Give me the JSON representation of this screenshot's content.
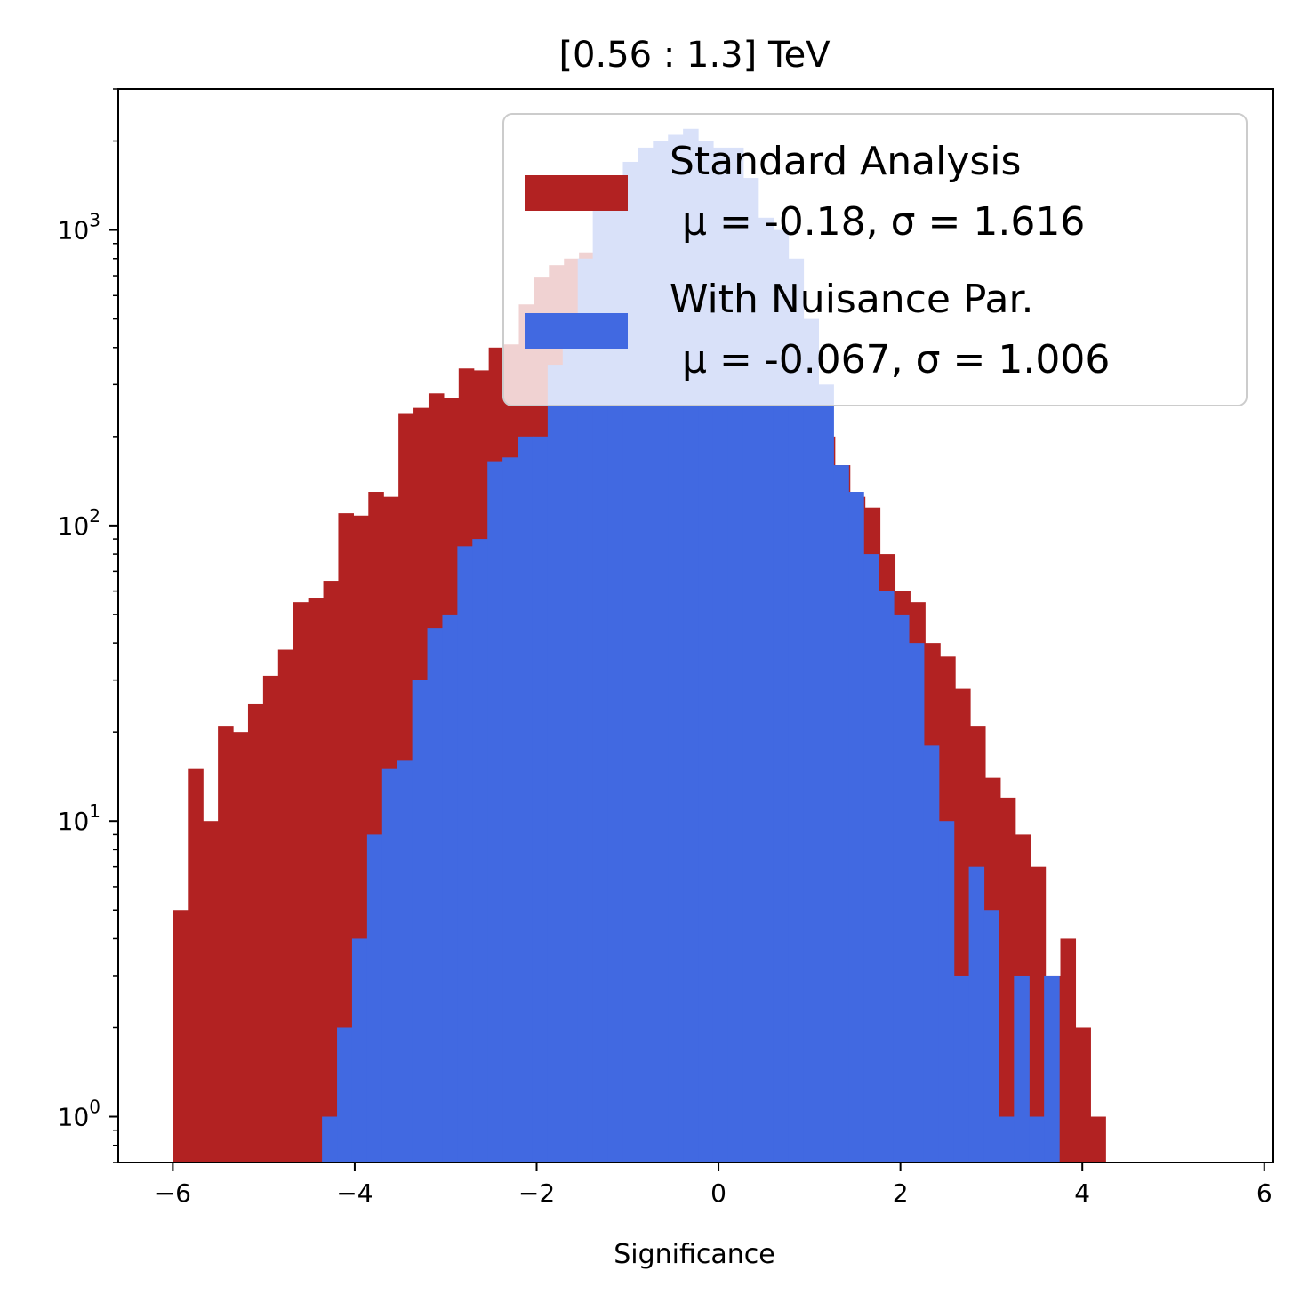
{
  "chart_data": {
    "type": "bar",
    "title": "[0.56 : 1.3] TeV",
    "xlabel": "Significance",
    "ylabel": "",
    "yscale": "log",
    "xlim": [
      -6.6,
      6.1
    ],
    "ylim": [
      0.7,
      3000
    ],
    "xticks": [
      -6,
      -4,
      -2,
      0,
      2,
      4,
      6
    ],
    "xtick_labels": [
      "−6",
      "−4",
      "−2",
      "0",
      "2",
      "4",
      "6"
    ],
    "yticks": [
      1,
      10,
      100,
      1000
    ],
    "ytick_labels": [
      {
        "base": "10",
        "exp": "0"
      },
      {
        "base": "10",
        "exp": "1"
      },
      {
        "base": "10",
        "exp": "2"
      },
      {
        "base": "10",
        "exp": "3"
      }
    ],
    "grid": false,
    "legend_position": "upper-right",
    "legend_alpha": 0.8,
    "series": [
      {
        "name": "Standard Analysis",
        "stats_label": " μ = -0.18, σ = 1.616",
        "color": "#b22222",
        "x_start": -6.0,
        "bin_width": 0.1654,
        "values": [
          5,
          15,
          10,
          21,
          20,
          25,
          31,
          38,
          55,
          57,
          65,
          110,
          108,
          130,
          125,
          240,
          250,
          280,
          270,
          340,
          335,
          400,
          410,
          560,
          690,
          760,
          800,
          840,
          900,
          860,
          870,
          880,
          860,
          820,
          680,
          640,
          560,
          500,
          450,
          360,
          305,
          250,
          230,
          200,
          160,
          125,
          115,
          80,
          60,
          55,
          40,
          36,
          28,
          21,
          14,
          12,
          9,
          7,
          3,
          4,
          2,
          1
        ]
      },
      {
        "name": "With Nuisance Par.",
        "stats_label": " μ = -0.067, σ = 1.006",
        "color": "#4169e1",
        "x_start": -4.36,
        "bin_width": 0.1654,
        "values": [
          1,
          2,
          4,
          9,
          15,
          16,
          30,
          45,
          50,
          85,
          90,
          165,
          170,
          200,
          200,
          350,
          450,
          800,
          1200,
          1400,
          1700,
          1900,
          2000,
          2100,
          2200,
          2000,
          1900,
          1900,
          1500,
          1100,
          1000,
          800,
          500,
          300,
          160,
          130,
          80,
          60,
          50,
          40,
          18,
          10,
          3,
          7,
          5,
          1,
          3,
          1,
          3
        ]
      }
    ]
  }
}
